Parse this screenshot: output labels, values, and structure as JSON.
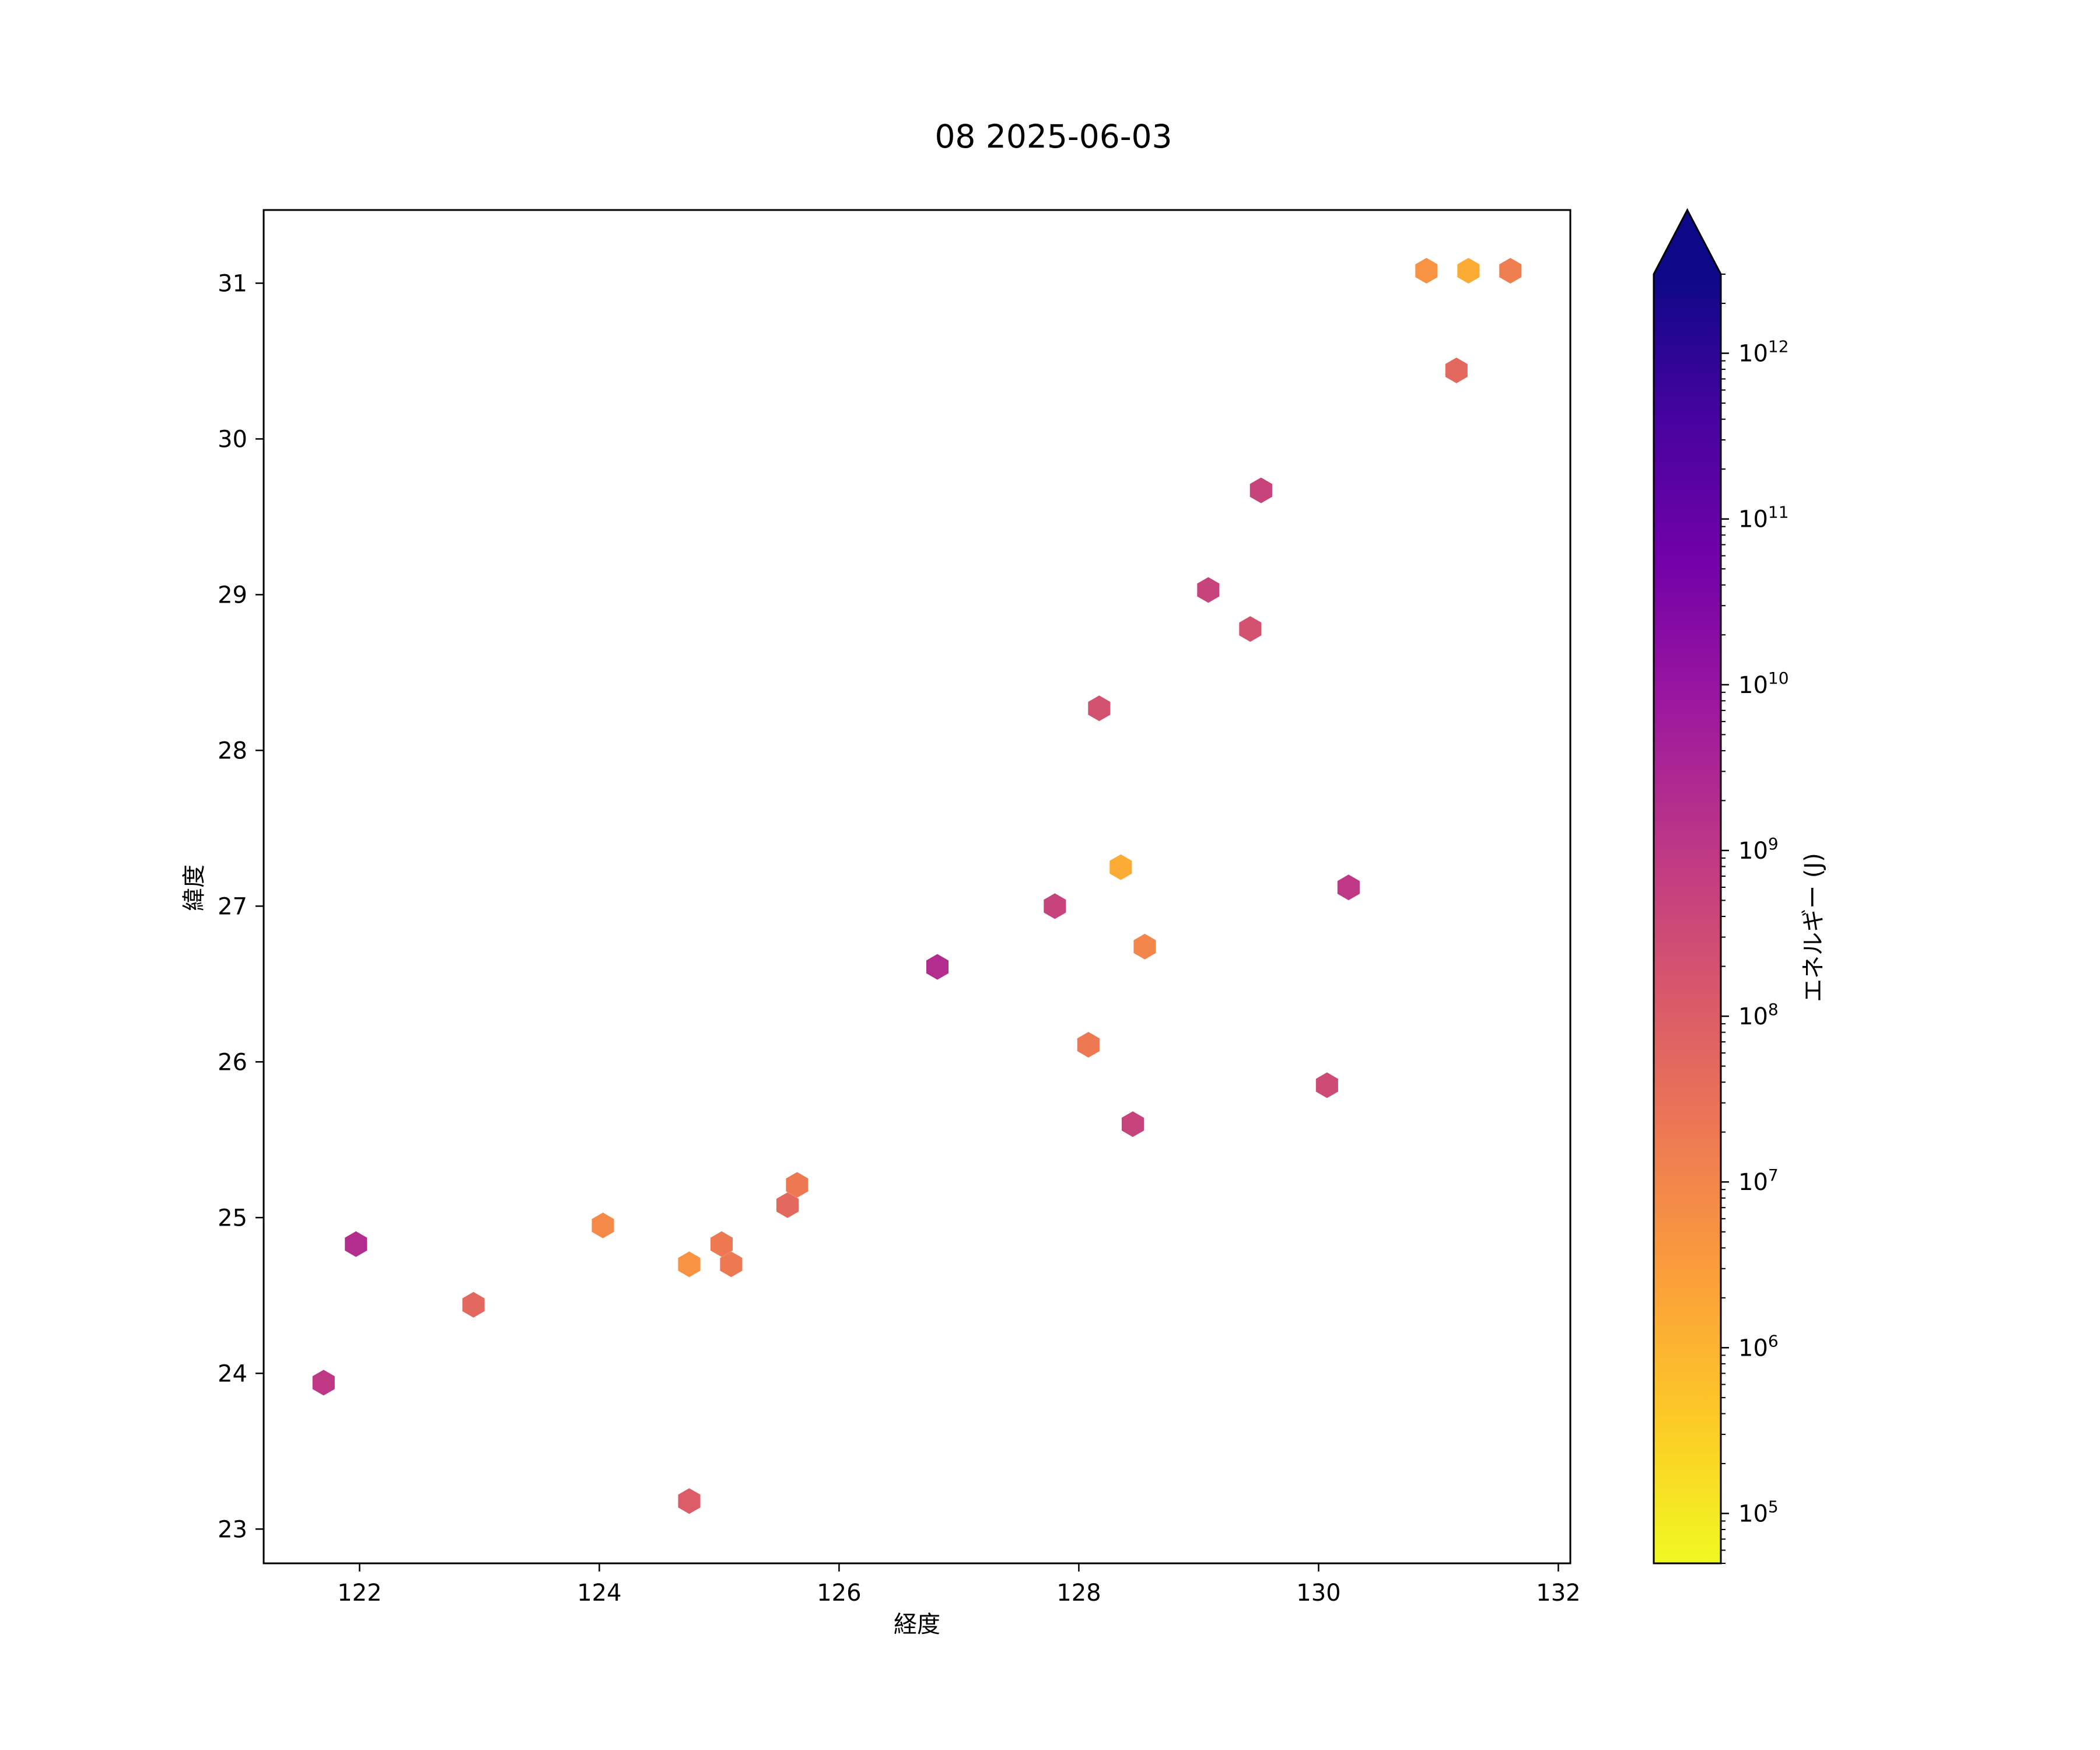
{
  "chart_data": {
    "type": "scatter",
    "marker": "hexagon",
    "title": "08 2025-06-03",
    "xlabel": "経度",
    "ylabel": "緯度",
    "xlim": [
      121.2,
      132.1
    ],
    "ylim": [
      22.78,
      31.47
    ],
    "xticks": [
      122,
      124,
      126,
      128,
      130,
      132
    ],
    "yticks": [
      23,
      24,
      25,
      26,
      27,
      28,
      29,
      30,
      31
    ],
    "grid": false,
    "colorbar": {
      "label": "エネルギー (J)",
      "scale": "log",
      "colormap": "plasma_r",
      "range": [
        50000,
        3000000000000
      ],
      "extend": "max",
      "ticks": [
        {
          "base": "10",
          "exp": "5",
          "value": 100000
        },
        {
          "base": "10",
          "exp": "6",
          "value": 1000000
        },
        {
          "base": "10",
          "exp": "7",
          "value": 10000000
        },
        {
          "base": "10",
          "exp": "8",
          "value": 100000000
        },
        {
          "base": "10",
          "exp": "9",
          "value": 1000000000
        },
        {
          "base": "10",
          "exp": "10",
          "value": 10000000000
        },
        {
          "base": "10",
          "exp": "11",
          "value": 100000000000
        },
        {
          "base": "10",
          "exp": "12",
          "value": 1000000000000
        }
      ],
      "colormap_stops": [
        "#f0f921",
        "#fdca26",
        "#fb9f3a",
        "#ed7953",
        "#d8576b",
        "#bd3786",
        "#9c179e",
        "#7201a8",
        "#46039f",
        "#0d0887"
      ]
    },
    "points": [
      {
        "x": 130.9,
        "y": 31.08,
        "energy": 5000000
      },
      {
        "x": 131.25,
        "y": 31.08,
        "energy": 1500000
      },
      {
        "x": 131.6,
        "y": 31.08,
        "energy": 15000000
      },
      {
        "x": 131.15,
        "y": 30.44,
        "energy": 50000000
      },
      {
        "x": 129.52,
        "y": 29.67,
        "energy": 500000000
      },
      {
        "x": 129.08,
        "y": 29.03,
        "energy": 500000000
      },
      {
        "x": 129.43,
        "y": 28.78,
        "energy": 200000000
      },
      {
        "x": 128.17,
        "y": 28.27,
        "energy": 200000000
      },
      {
        "x": 128.35,
        "y": 27.25,
        "energy": 1500000
      },
      {
        "x": 130.25,
        "y": 27.12,
        "energy": 1000000000
      },
      {
        "x": 127.8,
        "y": 27.0,
        "energy": 500000000
      },
      {
        "x": 128.55,
        "y": 26.74,
        "energy": 10000000
      },
      {
        "x": 126.82,
        "y": 26.61,
        "energy": 2000000000
      },
      {
        "x": 128.08,
        "y": 26.11,
        "energy": 20000000
      },
      {
        "x": 130.07,
        "y": 25.85,
        "energy": 300000000
      },
      {
        "x": 128.45,
        "y": 25.6,
        "energy": 500000000
      },
      {
        "x": 125.65,
        "y": 25.21,
        "energy": 20000000
      },
      {
        "x": 125.57,
        "y": 25.08,
        "energy": 50000000
      },
      {
        "x": 124.03,
        "y": 24.95,
        "energy": 8000000
      },
      {
        "x": 121.97,
        "y": 24.83,
        "energy": 2000000000
      },
      {
        "x": 125.02,
        "y": 24.83,
        "energy": 20000000
      },
      {
        "x": 124.75,
        "y": 24.7,
        "energy": 5000000
      },
      {
        "x": 125.1,
        "y": 24.7,
        "energy": 20000000
      },
      {
        "x": 122.95,
        "y": 24.44,
        "energy": 50000000
      },
      {
        "x": 121.7,
        "y": 23.94,
        "energy": 1000000000
      },
      {
        "x": 124.75,
        "y": 23.18,
        "energy": 100000000
      }
    ]
  }
}
